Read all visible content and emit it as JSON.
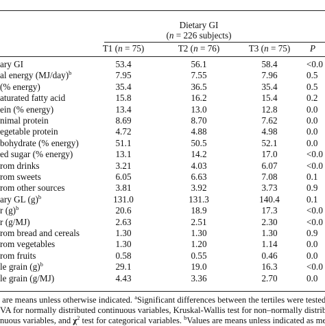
{
  "header": {
    "group": "Dietary GI",
    "subtitle_var": "n",
    "subtitle_rest": "= 226 subjects)",
    "columns": [
      {
        "name": "T1",
        "var": "n",
        "rest": "= 75)"
      },
      {
        "name": "T2",
        "var": "n",
        "rest": "= 76)"
      },
      {
        "name": "T3",
        "var": "n",
        "rest": "= 75)"
      },
      {
        "name": "P"
      }
    ]
  },
  "table": {
    "rows": [
      {
        "label": "ary GI",
        "values": [
          "53.4",
          "56.1",
          "58.4",
          "<0.0"
        ]
      },
      {
        "label": "al energy (MJ/day)",
        "sup": "b",
        "values": [
          "7.95",
          "7.55",
          "7.96",
          "0.5"
        ]
      },
      {
        "label": "(% energy)",
        "values": [
          "35.4",
          "36.5",
          "35.4",
          "0.5"
        ]
      },
      {
        "label": "aturated fatty acid",
        "values": [
          "15.8",
          "16.2",
          "15.4",
          "0.2"
        ]
      },
      {
        "label": "ein (% energy)",
        "values": [
          "13.4",
          "13.0",
          "12.8",
          "0.0"
        ]
      },
      {
        "label": "nimal protein",
        "values": [
          "8.69",
          "8.70",
          "7.62",
          "0.0"
        ]
      },
      {
        "label": "egetable protein",
        "values": [
          "4.72",
          "4.88",
          "4.98",
          "0.0"
        ]
      },
      {
        "label": "bohydrate (% energy)",
        "values": [
          "51.1",
          "50.5",
          "52.1",
          "0.0"
        ]
      },
      {
        "label": "ed sugar (% energy)",
        "values": [
          "13.1",
          "14.2",
          "17.0",
          "<0.0"
        ]
      },
      {
        "label": "rom drinks",
        "values": [
          "3.21",
          "4.03",
          "6.07",
          "<0.0"
        ]
      },
      {
        "label": "rom sweets",
        "values": [
          "6.05",
          "6.63",
          "7.08",
          "0.1"
        ]
      },
      {
        "label": "rom other sources",
        "values": [
          "3.81",
          "3.92",
          "3.73",
          "0.9"
        ]
      },
      {
        "label": "ary GL (g)",
        "sup": "b",
        "values": [
          "131.0",
          "131.3",
          "140.4",
          "0.1"
        ]
      },
      {
        "label": "r (g)",
        "sup": "b",
        "values": [
          "20.6",
          "18.9",
          "17.3",
          "<0.0"
        ]
      },
      {
        "label": "r (g/MJ)",
        "values": [
          "2.63",
          "2.51",
          "2.30",
          "<0.0"
        ]
      },
      {
        "label": "rom bread and cereals",
        "values": [
          "1.30",
          "1.30",
          "1.30",
          "0.9"
        ]
      },
      {
        "label": "rom vegetables",
        "values": [
          "1.30",
          "1.20",
          "1.14",
          "0.0"
        ]
      },
      {
        "label": "rom fruits",
        "values": [
          "0.58",
          "0.55",
          "0.46",
          "0.0"
        ]
      },
      {
        "label": "le grain (g)",
        "sup": "b",
        "values": [
          "29.1",
          "19.0",
          "16.3",
          "<0.0"
        ]
      },
      {
        "label": "le grain (g/MJ)",
        "values": [
          "4.43",
          "3.36",
          "2.70",
          "0.0"
        ]
      }
    ]
  },
  "footnote": {
    "lines": [
      [
        {
          "text": " are means unless otherwise indicated. "
        },
        {
          "sup": "a"
        },
        {
          "text": "Significant differences between the tertiles were tested w"
        }
      ],
      [
        {
          "text": "VA for normally distributed continuous variables, Kruskal-Wallis test for non–normally distribut"
        }
      ],
      [
        {
          "text": "nuous variables, and "
        },
        {
          "bold": "χ"
        },
        {
          "sup": "2"
        },
        {
          "text": " test for categorical variables. "
        },
        {
          "sup": "b"
        },
        {
          "text": "Values are means unless indicated as medi"
        }
      ]
    ]
  }
}
